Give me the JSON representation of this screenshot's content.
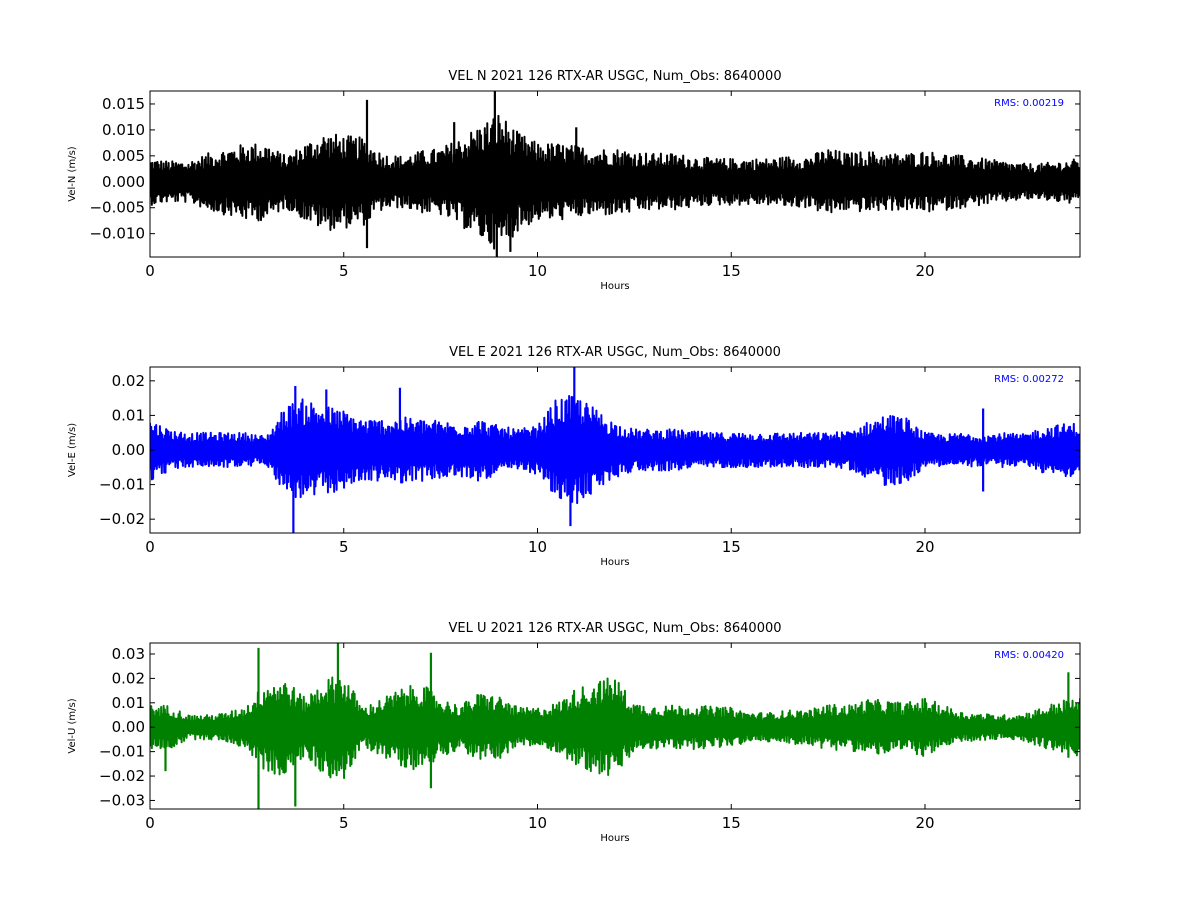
{
  "chart_data": [
    {
      "type": "line",
      "title": "VEL N 2021 126 RTX-AR  USGC, Num_Obs: 8640000",
      "xlabel": "Hours",
      "ylabel": "Vel-N (m/s)",
      "xlim": [
        0,
        24
      ],
      "ylim": [
        -0.0145,
        0.0175
      ],
      "xticks": [
        0,
        5,
        10,
        15,
        20
      ],
      "xtick_labels": [
        "0",
        "5",
        "10",
        "15",
        "20"
      ],
      "yticks": [
        -0.01,
        -0.005,
        0.0,
        0.005,
        0.01,
        0.015
      ],
      "ytick_labels": [
        "−0.010",
        "−0.005",
        "0.000",
        "0.005",
        "0.010",
        "0.015"
      ],
      "rms_label": "RMS:  0.00219",
      "color": "#000000",
      "series": [
        {
          "envelope_hours": [
            0,
            0.5,
            1,
            1.5,
            2,
            2.5,
            3,
            3.5,
            4,
            4.5,
            5,
            5.5,
            6,
            6.5,
            7,
            7.5,
            8,
            8.5,
            9,
            9.5,
            10,
            10.5,
            11,
            11.5,
            12,
            12.5,
            13,
            13.5,
            14,
            14.5,
            15,
            15.5,
            16,
            16.5,
            17,
            17.5,
            18,
            18.5,
            19,
            19.5,
            20,
            20.5,
            21,
            21.5,
            22,
            22.5,
            23,
            23.5,
            24
          ],
          "envelope_amplitude": [
            0.0045,
            0.004,
            0.004,
            0.0055,
            0.0065,
            0.0075,
            0.0075,
            0.005,
            0.0075,
            0.0095,
            0.009,
            0.0085,
            0.0055,
            0.005,
            0.006,
            0.0065,
            0.0085,
            0.011,
            0.0135,
            0.0095,
            0.0075,
            0.0075,
            0.007,
            0.0065,
            0.0065,
            0.006,
            0.0055,
            0.0055,
            0.005,
            0.0045,
            0.0045,
            0.0045,
            0.0045,
            0.005,
            0.005,
            0.0065,
            0.0055,
            0.006,
            0.0055,
            0.0055,
            0.006,
            0.0055,
            0.005,
            0.0045,
            0.004,
            0.0035,
            0.0035,
            0.004,
            0.0045
          ],
          "spikes": [
            [
              5.6,
              0.0158
            ],
            [
              5.6,
              -0.0128
            ],
            [
              8.9,
              0.0175
            ],
            [
              8.95,
              -0.0145
            ],
            [
              9.3,
              -0.0135
            ],
            [
              7.85,
              0.0115
            ],
            [
              11.0,
              0.0105
            ]
          ]
        }
      ]
    },
    {
      "type": "line",
      "title": "VEL E 2021 126 RTX-AR  USGC, Num_Obs: 8640000",
      "xlabel": "Hours",
      "ylabel": "Vel-E (m/s)",
      "xlim": [
        0,
        24
      ],
      "ylim": [
        -0.024,
        0.024
      ],
      "xticks": [
        0,
        5,
        10,
        15,
        20
      ],
      "xtick_labels": [
        "0",
        "5",
        "10",
        "15",
        "20"
      ],
      "yticks": [
        -0.02,
        -0.01,
        0.0,
        0.01,
        0.02
      ],
      "ytick_labels": [
        "−0.02",
        "−0.01",
        "0.00",
        "0.01",
        "0.02"
      ],
      "rms_label": "RMS:  0.00272",
      "color": "#0000ff",
      "series": [
        {
          "envelope_hours": [
            0,
            0.5,
            1,
            1.5,
            2,
            2.5,
            3,
            3.5,
            4,
            4.5,
            5,
            5.5,
            6,
            6.5,
            7,
            7.5,
            8,
            8.5,
            9,
            9.5,
            10,
            10.5,
            11,
            11.5,
            12,
            12.5,
            13,
            13.5,
            14,
            14.5,
            15,
            15.5,
            16,
            16.5,
            17,
            17.5,
            18,
            18.5,
            19,
            19.5,
            20,
            20.5,
            21,
            21.5,
            22,
            22.5,
            23,
            23.5,
            24
          ],
          "envelope_amplitude": [
            0.009,
            0.006,
            0.005,
            0.005,
            0.005,
            0.005,
            0.004,
            0.013,
            0.015,
            0.013,
            0.0115,
            0.009,
            0.009,
            0.0095,
            0.009,
            0.0085,
            0.008,
            0.009,
            0.007,
            0.006,
            0.007,
            0.015,
            0.016,
            0.012,
            0.008,
            0.006,
            0.006,
            0.006,
            0.0055,
            0.005,
            0.005,
            0.005,
            0.005,
            0.005,
            0.005,
            0.005,
            0.0055,
            0.008,
            0.0105,
            0.0095,
            0.005,
            0.0045,
            0.005,
            0.0045,
            0.005,
            0.0045,
            0.0065,
            0.0075,
            0.008
          ],
          "spikes": [
            [
              3.7,
              -0.024
            ],
            [
              3.75,
              0.0185
            ],
            [
              4.55,
              0.0175
            ],
            [
              6.45,
              0.018
            ],
            [
              10.95,
              0.024
            ],
            [
              10.85,
              -0.022
            ],
            [
              21.5,
              0.012
            ],
            [
              21.5,
              -0.012
            ]
          ]
        }
      ]
    },
    {
      "type": "line",
      "title": "VEL U 2021 126 RTX-AR  USGC, Num_Obs: 8640000",
      "xlabel": "Hours",
      "ylabel": "Vel-U (m/s)",
      "xlim": [
        0,
        24
      ],
      "ylim": [
        -0.0335,
        0.0345
      ],
      "xticks": [
        0,
        5,
        10,
        15,
        20
      ],
      "xtick_labels": [
        "0",
        "5",
        "10",
        "15",
        "20"
      ],
      "yticks": [
        -0.03,
        -0.02,
        -0.01,
        0.0,
        0.01,
        0.02,
        0.03
      ],
      "ytick_labels": [
        "−0.03",
        "−0.02",
        "−0.01",
        "0.00",
        "0.01",
        "0.02",
        "0.03"
      ],
      "rms_label": "RMS:  0.00420",
      "color": "#008000",
      "series": [
        {
          "envelope_hours": [
            0,
            0.5,
            1,
            1.5,
            2,
            2.5,
            3,
            3.5,
            4,
            4.5,
            5,
            5.5,
            6,
            6.5,
            7,
            7.5,
            8,
            8.5,
            9,
            9.5,
            10,
            10.5,
            11,
            11.5,
            12,
            12.5,
            13,
            13.5,
            14,
            14.5,
            15,
            15.5,
            16,
            16.5,
            17,
            17.5,
            18,
            18.5,
            19,
            19.5,
            20,
            20.5,
            21,
            21.5,
            22,
            22.5,
            23,
            23.5,
            24
          ],
          "envelope_amplitude": [
            0.009,
            0.009,
            0.005,
            0.005,
            0.006,
            0.009,
            0.019,
            0.02,
            0.012,
            0.02,
            0.022,
            0.008,
            0.012,
            0.016,
            0.018,
            0.012,
            0.009,
            0.014,
            0.013,
            0.008,
            0.008,
            0.01,
            0.016,
            0.019,
            0.021,
            0.01,
            0.009,
            0.009,
            0.009,
            0.0085,
            0.008,
            0.006,
            0.006,
            0.007,
            0.007,
            0.0095,
            0.009,
            0.0115,
            0.011,
            0.01,
            0.012,
            0.009,
            0.006,
            0.0055,
            0.005,
            0.0055,
            0.008,
            0.011,
            0.012
          ],
          "spikes": [
            [
              2.8,
              -0.0335
            ],
            [
              2.8,
              0.0325
            ],
            [
              3.75,
              -0.0325
            ],
            [
              4.85,
              0.0345
            ],
            [
              7.25,
              0.0305
            ],
            [
              7.25,
              -0.025
            ],
            [
              0.4,
              -0.018
            ],
            [
              23.7,
              0.0225
            ],
            [
              23.7,
              -0.0125
            ]
          ]
        }
      ]
    }
  ]
}
